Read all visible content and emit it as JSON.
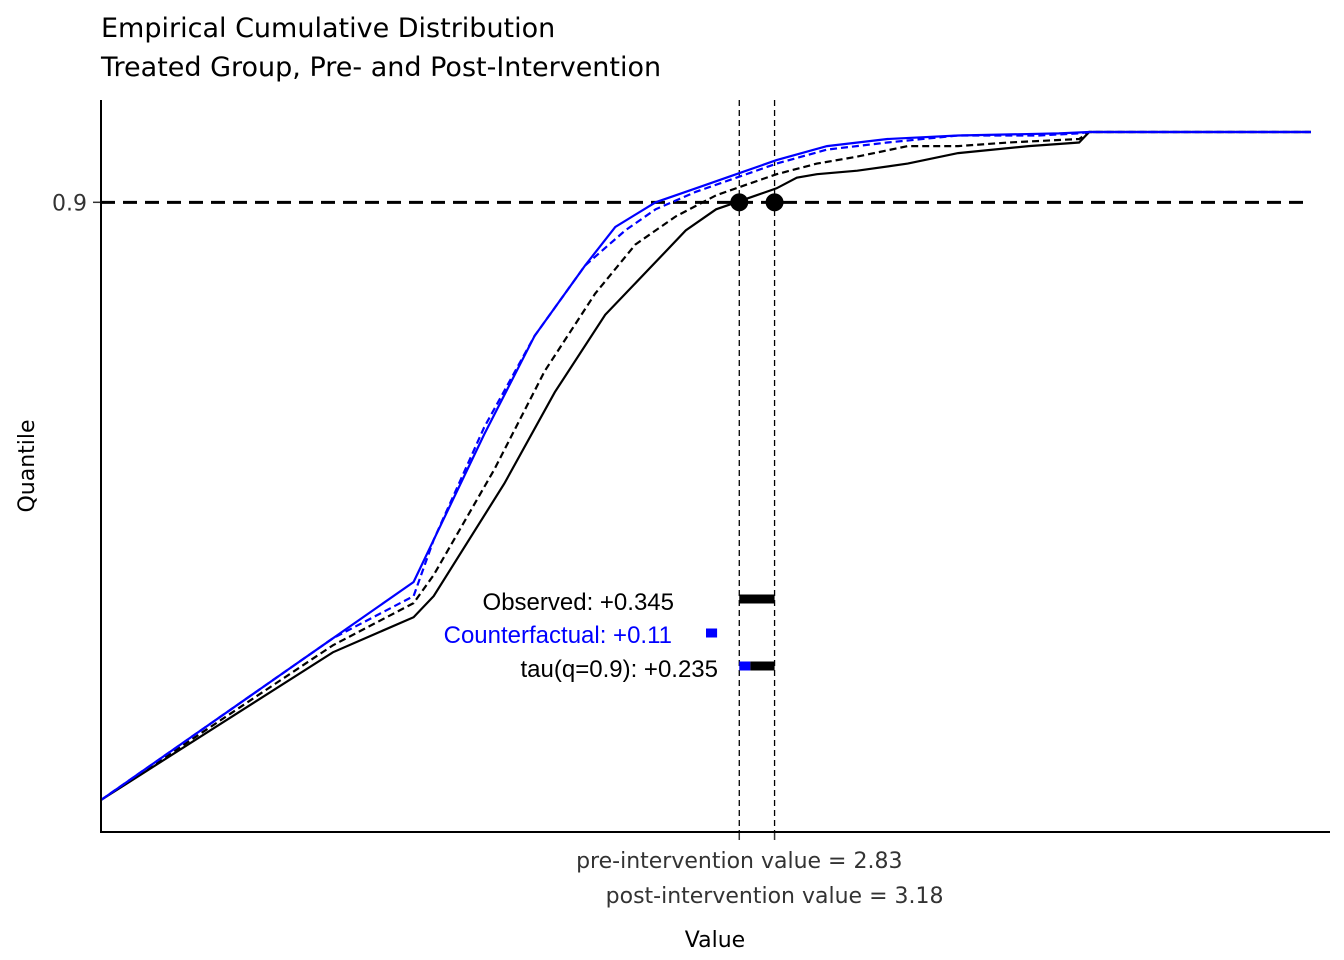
{
  "chart_data": {
    "type": "line",
    "title": "Empirical Cumulative Distribution",
    "subtitle": "Treated Group,  Pre- and Post-Intervention",
    "xlabel": "Value",
    "ylabel": "Quantile",
    "xlim": [
      -3.5,
      8.5
    ],
    "ylim": [
      0.0,
      1.0
    ],
    "grid": false,
    "y_ticks": [
      {
        "value": 0.9,
        "label": "0.9"
      }
    ],
    "x_markers": [
      {
        "value": 2.83,
        "label": "pre-intervention value = 2.83"
      },
      {
        "value": 3.18,
        "label": "post-intervention value = 3.18"
      }
    ],
    "hline": {
      "value": 0.9
    },
    "points": [
      {
        "x": 2.83,
        "y": 0.9
      },
      {
        "x": 3.18,
        "y": 0.9
      }
    ],
    "series": [
      {
        "color": "#000000",
        "dash": "solid",
        "x": [
          -3.5,
          -1.2,
          -0.4,
          -0.2,
          0.5,
          1.0,
          1.5,
          1.9,
          2.1,
          2.3,
          2.6,
          2.8,
          3.0,
          3.2,
          3.4,
          3.6,
          4.0,
          4.5,
          5.0,
          5.7,
          6.2,
          6.3,
          8.5
        ],
        "y": [
          0.05,
          0.26,
          0.31,
          0.34,
          0.5,
          0.63,
          0.74,
          0.8,
          0.83,
          0.86,
          0.89,
          0.9,
          0.91,
          0.92,
          0.935,
          0.94,
          0.945,
          0.955,
          0.97,
          0.98,
          0.985,
          1.0,
          1.0
        ]
      },
      {
        "color": "#000000",
        "dash": "dashed",
        "x": [
          -3.5,
          -1.2,
          -0.4,
          -0.2,
          0.4,
          0.9,
          1.4,
          1.8,
          2.2,
          2.6,
          2.9,
          3.2,
          3.6,
          4.0,
          4.5,
          5.0,
          5.5,
          6.2,
          6.3,
          8.5
        ],
        "y": [
          0.05,
          0.27,
          0.33,
          0.37,
          0.52,
          0.66,
          0.77,
          0.84,
          0.88,
          0.91,
          0.925,
          0.94,
          0.955,
          0.965,
          0.98,
          0.98,
          0.985,
          0.99,
          1.0,
          1.0
        ]
      },
      {
        "color": "#0000ff",
        "dash": "dashed",
        "x": [
          -3.5,
          -1.2,
          -0.4,
          -0.2,
          0.3,
          0.8,
          1.3,
          1.7,
          2.0,
          2.4,
          2.8,
          3.2,
          3.7,
          4.3,
          5.0,
          5.8,
          6.2,
          6.3,
          8.5
        ],
        "y": [
          0.05,
          0.28,
          0.34,
          0.42,
          0.58,
          0.71,
          0.81,
          0.86,
          0.89,
          0.915,
          0.935,
          0.955,
          0.975,
          0.985,
          0.995,
          0.995,
          0.998,
          1.0,
          1.0
        ]
      },
      {
        "color": "#0000ff",
        "dash": "solid",
        "x": [
          -3.5,
          -1.2,
          -0.4,
          -0.2,
          0.3,
          0.8,
          1.3,
          1.6,
          2.0,
          2.4,
          2.8,
          3.2,
          3.7,
          4.3,
          5.0,
          6.0,
          6.3,
          8.5
        ],
        "y": [
          0.05,
          0.28,
          0.36,
          0.42,
          0.57,
          0.71,
          0.81,
          0.865,
          0.9,
          0.92,
          0.94,
          0.96,
          0.98,
          0.99,
          0.995,
          0.998,
          1.0,
          1.0
        ]
      }
    ],
    "annotations": [
      {
        "text": "Observed:  +0.345",
        "color": "#000000"
      },
      {
        "text": "Counterfactual:  +0.11",
        "color": "#0000ff"
      },
      {
        "text": "tau(q=0.9):  +0.235",
        "color": "#000000"
      }
    ],
    "effect_bars": [
      {
        "color": "#000000",
        "x0": 2.83,
        "x1": 3.18
      },
      {
        "color": "#0000ff",
        "x0": 2.5,
        "x1": 2.61
      },
      {
        "color": "#0000ff",
        "x0": 2.83,
        "x1": 2.94
      },
      {
        "color": "#000000",
        "x0": 2.94,
        "x1": 3.18
      }
    ]
  }
}
